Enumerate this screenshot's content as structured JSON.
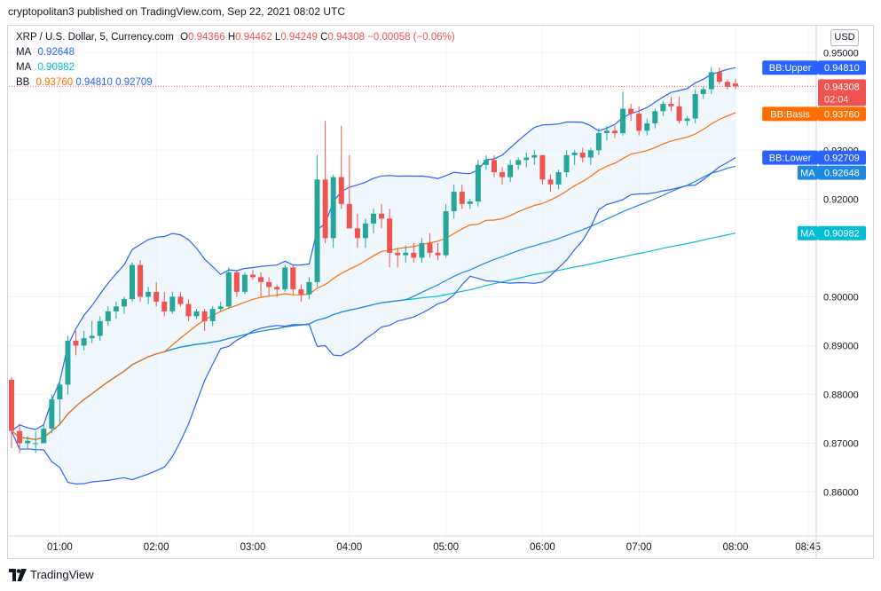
{
  "header": {
    "publisher_line": "cryptopolitan3 published on TradingView.com, Sep 22, 2021 08:02 UTC"
  },
  "legend": {
    "symbol": "XRP / U.S. Dollar, 5, Currency.com",
    "o_label": "O",
    "o_value": "0.94366",
    "h_label": "H",
    "h_value": "0.94462",
    "l_label": "L",
    "l_value": "0.94249",
    "c_label": "C",
    "c_value": "0.94308",
    "change": "−0.00058 (−0.06%)",
    "ma1_label": "MA",
    "ma1_value": "0.92648",
    "ma2_label": "MA",
    "ma2_value": "0.90982",
    "bb_label": "BB",
    "bb_basis": "0.93760",
    "bb_upper": "0.94810",
    "bb_lower": "0.92709"
  },
  "currency_button": "USD",
  "footer": {
    "brand": "TradingView"
  },
  "chart_data": {
    "type": "candlestick",
    "y_ticks": [
      "0.86000",
      "0.87000",
      "0.88000",
      "0.89000",
      "0.90000",
      "0.92000",
      "0.93000",
      "0.95000"
    ],
    "y_range": [
      0.851,
      0.9555
    ],
    "x_ticks": [
      "01:00",
      "02:00",
      "03:00",
      "04:00",
      "05:00",
      "06:00",
      "07:00",
      "08:00",
      "08:45"
    ],
    "badges": [
      {
        "label": "BB:Upper",
        "value": "0.94810"
      },
      {
        "label": "",
        "value": "0.94308",
        "sub": "02:04"
      },
      {
        "label": "BB:Basis",
        "value": "0.93760"
      },
      {
        "label": "BB:Lower",
        "value": "0.92709"
      },
      {
        "label": "MA",
        "value": "0.92648"
      },
      {
        "label": "MA",
        "value": "0.90982"
      }
    ],
    "last_price": 0.94308,
    "colors": {
      "up": "#26a69a",
      "down": "#ef5350",
      "bb": "#2962ff",
      "basis": "#ff6d00",
      "ma_slow": "#00bcd4",
      "ma_fast": "#1e88e5",
      "band_fill": "#e3f2fd"
    },
    "candles": [
      {
        "t": "00:30",
        "o": 0.883,
        "h": 0.8835,
        "l": 0.869,
        "c": 0.8725
      },
      {
        "t": "00:35",
        "o": 0.8725,
        "h": 0.874,
        "l": 0.868,
        "c": 0.87
      },
      {
        "t": "00:40",
        "o": 0.87,
        "h": 0.8715,
        "l": 0.869,
        "c": 0.8705
      },
      {
        "t": "00:45",
        "o": 0.87,
        "h": 0.8725,
        "l": 0.868,
        "c": 0.87
      },
      {
        "t": "00:50",
        "o": 0.87,
        "h": 0.874,
        "l": 0.87,
        "c": 0.873
      },
      {
        "t": "00:55",
        "o": 0.873,
        "h": 0.88,
        "l": 0.872,
        "c": 0.879
      },
      {
        "t": "01:00",
        "o": 0.879,
        "h": 0.883,
        "l": 0.874,
        "c": 0.882
      },
      {
        "t": "01:05",
        "o": 0.882,
        "h": 0.892,
        "l": 0.88,
        "c": 0.891
      },
      {
        "t": "01:10",
        "o": 0.891,
        "h": 0.893,
        "l": 0.888,
        "c": 0.89
      },
      {
        "t": "01:15",
        "o": 0.89,
        "h": 0.893,
        "l": 0.889,
        "c": 0.8915
      },
      {
        "t": "01:20",
        "o": 0.8915,
        "h": 0.895,
        "l": 0.8905,
        "c": 0.892
      },
      {
        "t": "01:25",
        "o": 0.892,
        "h": 0.896,
        "l": 0.891,
        "c": 0.895
      },
      {
        "t": "01:30",
        "o": 0.895,
        "h": 0.898,
        "l": 0.894,
        "c": 0.897
      },
      {
        "t": "01:35",
        "o": 0.897,
        "h": 0.899,
        "l": 0.8955,
        "c": 0.898
      },
      {
        "t": "01:40",
        "o": 0.898,
        "h": 0.9,
        "l": 0.8965,
        "c": 0.8995
      },
      {
        "t": "01:45",
        "o": 0.8995,
        "h": 0.907,
        "l": 0.899,
        "c": 0.9065
      },
      {
        "t": "01:50",
        "o": 0.9065,
        "h": 0.9075,
        "l": 0.899,
        "c": 0.9
      },
      {
        "t": "01:55",
        "o": 0.9,
        "h": 0.902,
        "l": 0.8985,
        "c": 0.901
      },
      {
        "t": "02:00",
        "o": 0.901,
        "h": 0.903,
        "l": 0.898,
        "c": 0.899
      },
      {
        "t": "02:05",
        "o": 0.899,
        "h": 0.901,
        "l": 0.896,
        "c": 0.897
      },
      {
        "t": "02:10",
        "o": 0.897,
        "h": 0.901,
        "l": 0.8965,
        "c": 0.9
      },
      {
        "t": "02:15",
        "o": 0.9,
        "h": 0.901,
        "l": 0.898,
        "c": 0.8985
      },
      {
        "t": "02:20",
        "o": 0.8985,
        "h": 0.8995,
        "l": 0.895,
        "c": 0.896
      },
      {
        "t": "02:25",
        "o": 0.896,
        "h": 0.8975,
        "l": 0.8955,
        "c": 0.897
      },
      {
        "t": "02:30",
        "o": 0.897,
        "h": 0.8975,
        "l": 0.893,
        "c": 0.895
      },
      {
        "t": "02:35",
        "o": 0.895,
        "h": 0.898,
        "l": 0.894,
        "c": 0.8975
      },
      {
        "t": "02:40",
        "o": 0.8975,
        "h": 0.899,
        "l": 0.897,
        "c": 0.898
      },
      {
        "t": "02:45",
        "o": 0.898,
        "h": 0.906,
        "l": 0.8975,
        "c": 0.905
      },
      {
        "t": "02:50",
        "o": 0.905,
        "h": 0.9055,
        "l": 0.9,
        "c": 0.901
      },
      {
        "t": "02:55",
        "o": 0.901,
        "h": 0.905,
        "l": 0.9005,
        "c": 0.9045
      },
      {
        "t": "03:00",
        "o": 0.9045,
        "h": 0.9055,
        "l": 0.9035,
        "c": 0.904
      },
      {
        "t": "03:05",
        "o": 0.904,
        "h": 0.905,
        "l": 0.9,
        "c": 0.903
      },
      {
        "t": "03:10",
        "o": 0.903,
        "h": 0.904,
        "l": 0.9,
        "c": 0.902
      },
      {
        "t": "03:15",
        "o": 0.902,
        "h": 0.9025,
        "l": 0.9,
        "c": 0.9015
      },
      {
        "t": "03:20",
        "o": 0.9015,
        "h": 0.9065,
        "l": 0.901,
        "c": 0.906
      },
      {
        "t": "03:25",
        "o": 0.906,
        "h": 0.9065,
        "l": 0.9005,
        "c": 0.9015
      },
      {
        "t": "03:30",
        "o": 0.9015,
        "h": 0.9025,
        "l": 0.899,
        "c": 0.9005
      },
      {
        "t": "03:35",
        "o": 0.9005,
        "h": 0.904,
        "l": 0.8995,
        "c": 0.903
      },
      {
        "t": "03:40",
        "o": 0.903,
        "h": 0.929,
        "l": 0.902,
        "c": 0.924
      },
      {
        "t": "03:45",
        "o": 0.924,
        "h": 0.936,
        "l": 0.911,
        "c": 0.912
      },
      {
        "t": "03:50",
        "o": 0.912,
        "h": 0.925,
        "l": 0.91,
        "c": 0.9245
      },
      {
        "t": "03:55",
        "o": 0.9245,
        "h": 0.935,
        "l": 0.918,
        "c": 0.919
      },
      {
        "t": "04:00",
        "o": 0.919,
        "h": 0.929,
        "l": 0.914,
        "c": 0.914
      },
      {
        "t": "04:05",
        "o": 0.914,
        "h": 0.917,
        "l": 0.91,
        "c": 0.912
      },
      {
        "t": "04:10",
        "o": 0.912,
        "h": 0.916,
        "l": 0.91,
        "c": 0.915
      },
      {
        "t": "04:15",
        "o": 0.915,
        "h": 0.918,
        "l": 0.913,
        "c": 0.917
      },
      {
        "t": "04:20",
        "o": 0.917,
        "h": 0.919,
        "l": 0.914,
        "c": 0.916
      },
      {
        "t": "04:25",
        "o": 0.916,
        "h": 0.918,
        "l": 0.906,
        "c": 0.909
      },
      {
        "t": "04:30",
        "o": 0.909,
        "h": 0.91,
        "l": 0.906,
        "c": 0.9085
      },
      {
        "t": "04:35",
        "o": 0.9085,
        "h": 0.9105,
        "l": 0.907,
        "c": 0.909
      },
      {
        "t": "04:40",
        "o": 0.909,
        "h": 0.911,
        "l": 0.907,
        "c": 0.908
      },
      {
        "t": "04:45",
        "o": 0.908,
        "h": 0.912,
        "l": 0.907,
        "c": 0.911
      },
      {
        "t": "04:50",
        "o": 0.911,
        "h": 0.913,
        "l": 0.908,
        "c": 0.909
      },
      {
        "t": "04:55",
        "o": 0.909,
        "h": 0.911,
        "l": 0.9075,
        "c": 0.9085
      },
      {
        "t": "05:00",
        "o": 0.9085,
        "h": 0.919,
        "l": 0.908,
        "c": 0.9175
      },
      {
        "t": "05:05",
        "o": 0.9175,
        "h": 0.923,
        "l": 0.916,
        "c": 0.9215
      },
      {
        "t": "05:10",
        "o": 0.9215,
        "h": 0.923,
        "l": 0.918,
        "c": 0.919
      },
      {
        "t": "05:15",
        "o": 0.919,
        "h": 0.92,
        "l": 0.918,
        "c": 0.9195
      },
      {
        "t": "05:20",
        "o": 0.9195,
        "h": 0.928,
        "l": 0.9185,
        "c": 0.927
      },
      {
        "t": "05:25",
        "o": 0.927,
        "h": 0.929,
        "l": 0.926,
        "c": 0.928
      },
      {
        "t": "05:30",
        "o": 0.928,
        "h": 0.929,
        "l": 0.9245,
        "c": 0.9255
      },
      {
        "t": "05:35",
        "o": 0.9255,
        "h": 0.9265,
        "l": 0.923,
        "c": 0.9245
      },
      {
        "t": "05:40",
        "o": 0.9245,
        "h": 0.928,
        "l": 0.9235,
        "c": 0.927
      },
      {
        "t": "05:45",
        "o": 0.927,
        "h": 0.9285,
        "l": 0.926,
        "c": 0.928
      },
      {
        "t": "05:50",
        "o": 0.928,
        "h": 0.9295,
        "l": 0.9265,
        "c": 0.9285
      },
      {
        "t": "05:55",
        "o": 0.9285,
        "h": 0.93,
        "l": 0.927,
        "c": 0.929
      },
      {
        "t": "06:00",
        "o": 0.929,
        "h": 0.929,
        "l": 0.923,
        "c": 0.924
      },
      {
        "t": "06:05",
        "o": 0.924,
        "h": 0.925,
        "l": 0.9215,
        "c": 0.923
      },
      {
        "t": "06:10",
        "o": 0.923,
        "h": 0.926,
        "l": 0.922,
        "c": 0.9255
      },
      {
        "t": "06:15",
        "o": 0.9255,
        "h": 0.93,
        "l": 0.9245,
        "c": 0.929
      },
      {
        "t": "06:20",
        "o": 0.929,
        "h": 0.93,
        "l": 0.927,
        "c": 0.9295
      },
      {
        "t": "06:25",
        "o": 0.9295,
        "h": 0.9305,
        "l": 0.9275,
        "c": 0.9285
      },
      {
        "t": "06:30",
        "o": 0.9285,
        "h": 0.9305,
        "l": 0.927,
        "c": 0.93
      },
      {
        "t": "06:35",
        "o": 0.93,
        "h": 0.9345,
        "l": 0.929,
        "c": 0.9335
      },
      {
        "t": "06:40",
        "o": 0.9335,
        "h": 0.935,
        "l": 0.932,
        "c": 0.934
      },
      {
        "t": "06:45",
        "o": 0.934,
        "h": 0.935,
        "l": 0.9325,
        "c": 0.9335
      },
      {
        "t": "06:50",
        "o": 0.9335,
        "h": 0.942,
        "l": 0.933,
        "c": 0.9385
      },
      {
        "t": "06:55",
        "o": 0.9385,
        "h": 0.9395,
        "l": 0.936,
        "c": 0.9375
      },
      {
        "t": "07:00",
        "o": 0.9375,
        "h": 0.939,
        "l": 0.933,
        "c": 0.934
      },
      {
        "t": "07:05",
        "o": 0.934,
        "h": 0.9365,
        "l": 0.933,
        "c": 0.9355
      },
      {
        "t": "07:10",
        "o": 0.9355,
        "h": 0.9385,
        "l": 0.9345,
        "c": 0.938
      },
      {
        "t": "07:15",
        "o": 0.938,
        "h": 0.94,
        "l": 0.937,
        "c": 0.9395
      },
      {
        "t": "07:20",
        "o": 0.9395,
        "h": 0.941,
        "l": 0.938,
        "c": 0.939
      },
      {
        "t": "07:25",
        "o": 0.939,
        "h": 0.941,
        "l": 0.9355,
        "c": 0.936
      },
      {
        "t": "07:30",
        "o": 0.936,
        "h": 0.937,
        "l": 0.935,
        "c": 0.9365
      },
      {
        "t": "07:35",
        "o": 0.9365,
        "h": 0.9425,
        "l": 0.9355,
        "c": 0.9415
      },
      {
        "t": "07:40",
        "o": 0.9415,
        "h": 0.943,
        "l": 0.9405,
        "c": 0.9425
      },
      {
        "t": "07:45",
        "o": 0.9425,
        "h": 0.947,
        "l": 0.9415,
        "c": 0.946
      },
      {
        "t": "07:50",
        "o": 0.946,
        "h": 0.947,
        "l": 0.9435,
        "c": 0.944
      },
      {
        "t": "07:55",
        "o": 0.944,
        "h": 0.9445,
        "l": 0.9425,
        "c": 0.943
      },
      {
        "t": "08:00",
        "o": 0.94366,
        "h": 0.94462,
        "l": 0.94249,
        "c": 0.94308
      }
    ]
  }
}
